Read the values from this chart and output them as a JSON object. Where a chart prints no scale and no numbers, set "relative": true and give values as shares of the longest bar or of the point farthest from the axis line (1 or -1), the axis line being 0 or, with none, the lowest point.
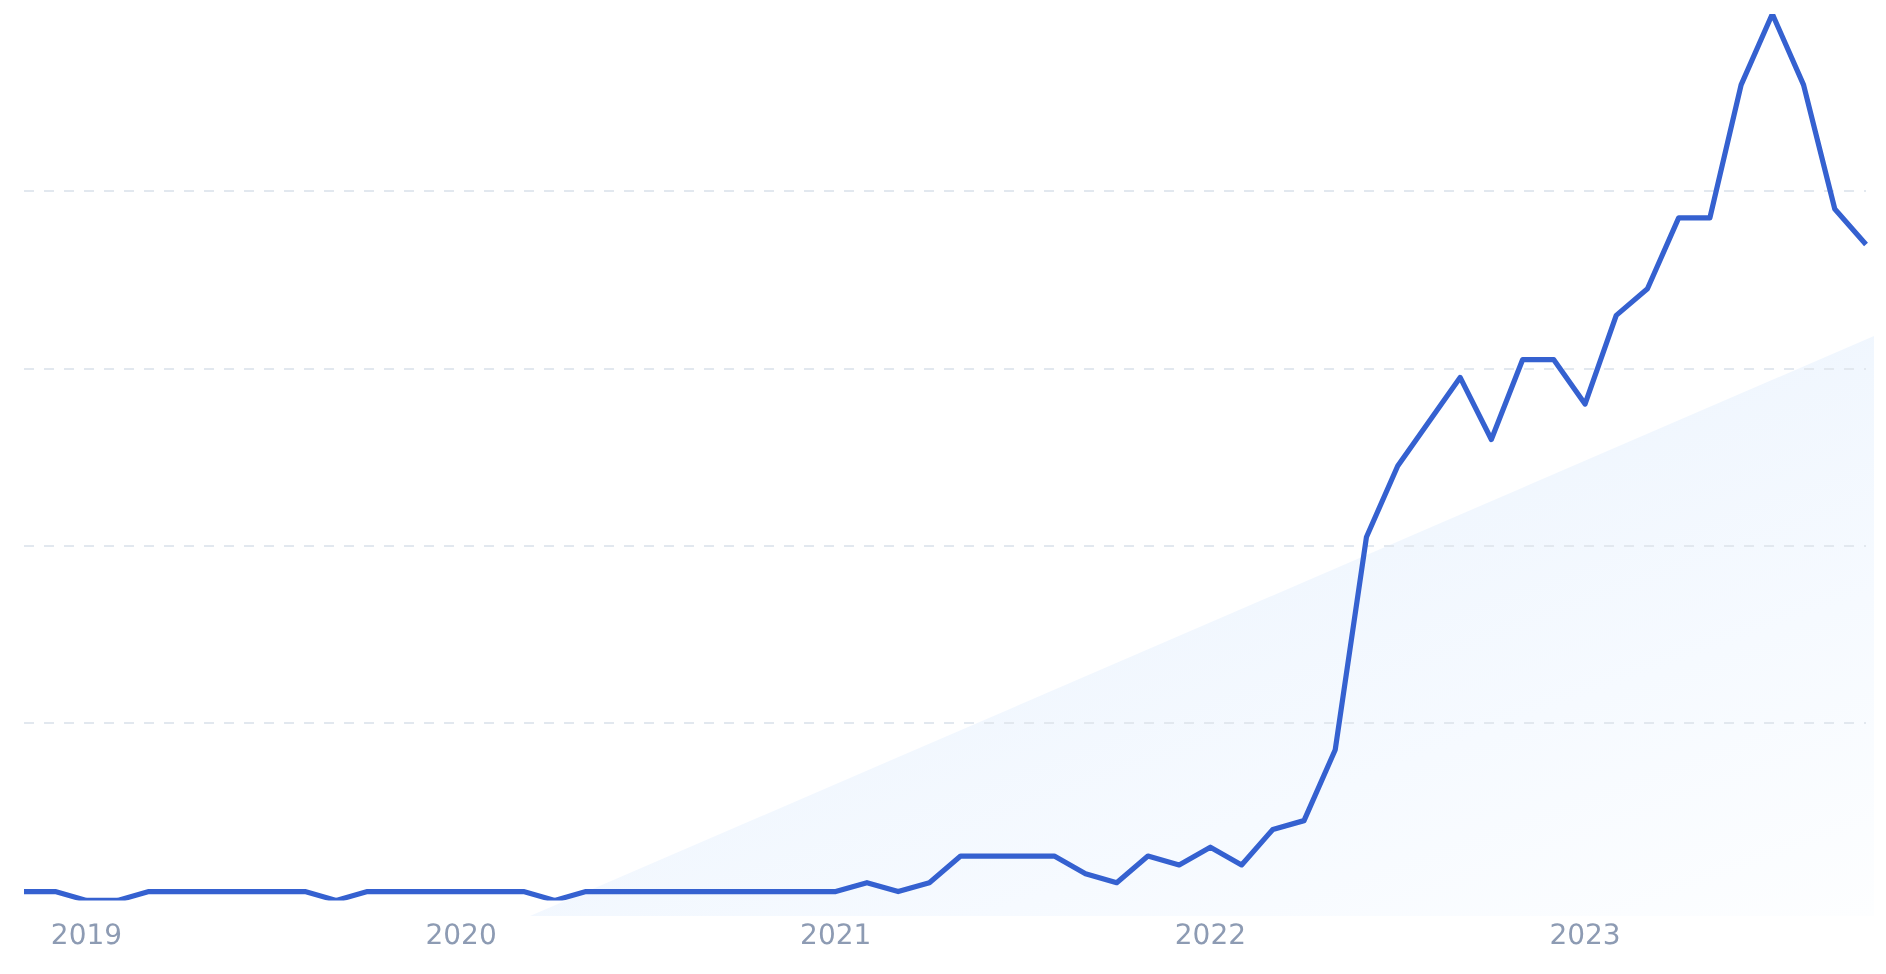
{
  "chart_data": {
    "type": "line",
    "relative": true,
    "grid": "y",
    "categories": [
      null,
      null,
      "2019",
      null,
      null,
      null,
      null,
      null,
      null,
      null,
      null,
      null,
      null,
      null,
      "2020",
      null,
      null,
      null,
      null,
      null,
      null,
      null,
      null,
      null,
      null,
      null,
      "2021",
      null,
      null,
      null,
      null,
      null,
      null,
      null,
      null,
      null,
      null,
      null,
      "2022",
      null,
      null,
      null,
      null,
      null,
      null,
      null,
      null,
      null,
      null,
      null,
      "2023",
      null,
      null,
      null,
      null,
      null,
      null,
      null,
      null,
      null
    ],
    "series": [
      {
        "color": "#3561d0",
        "values": [
          0.01,
          0.01,
          0,
          0,
          0.01,
          0.01,
          0.01,
          0.01,
          0.01,
          0.01,
          0,
          0.01,
          0.01,
          0.01,
          0.01,
          0.01,
          0.01,
          0,
          0.01,
          0.01,
          0.01,
          0.01,
          0.01,
          0.01,
          0.01,
          0.01,
          0.01,
          0.02,
          0.01,
          0.02,
          0.05,
          0.05,
          0.05,
          0.05,
          0.03,
          0.02,
          0.05,
          0.04,
          0.06,
          0.04,
          0.08,
          0.09,
          0.17,
          0.41,
          0.49,
          0.54,
          0.59,
          0.52,
          0.61,
          0.61,
          0.56,
          0.66,
          0.69,
          0.77,
          0.77,
          0.92,
          1,
          0.92,
          0.78,
          0.74
        ]
      }
    ]
  }
}
